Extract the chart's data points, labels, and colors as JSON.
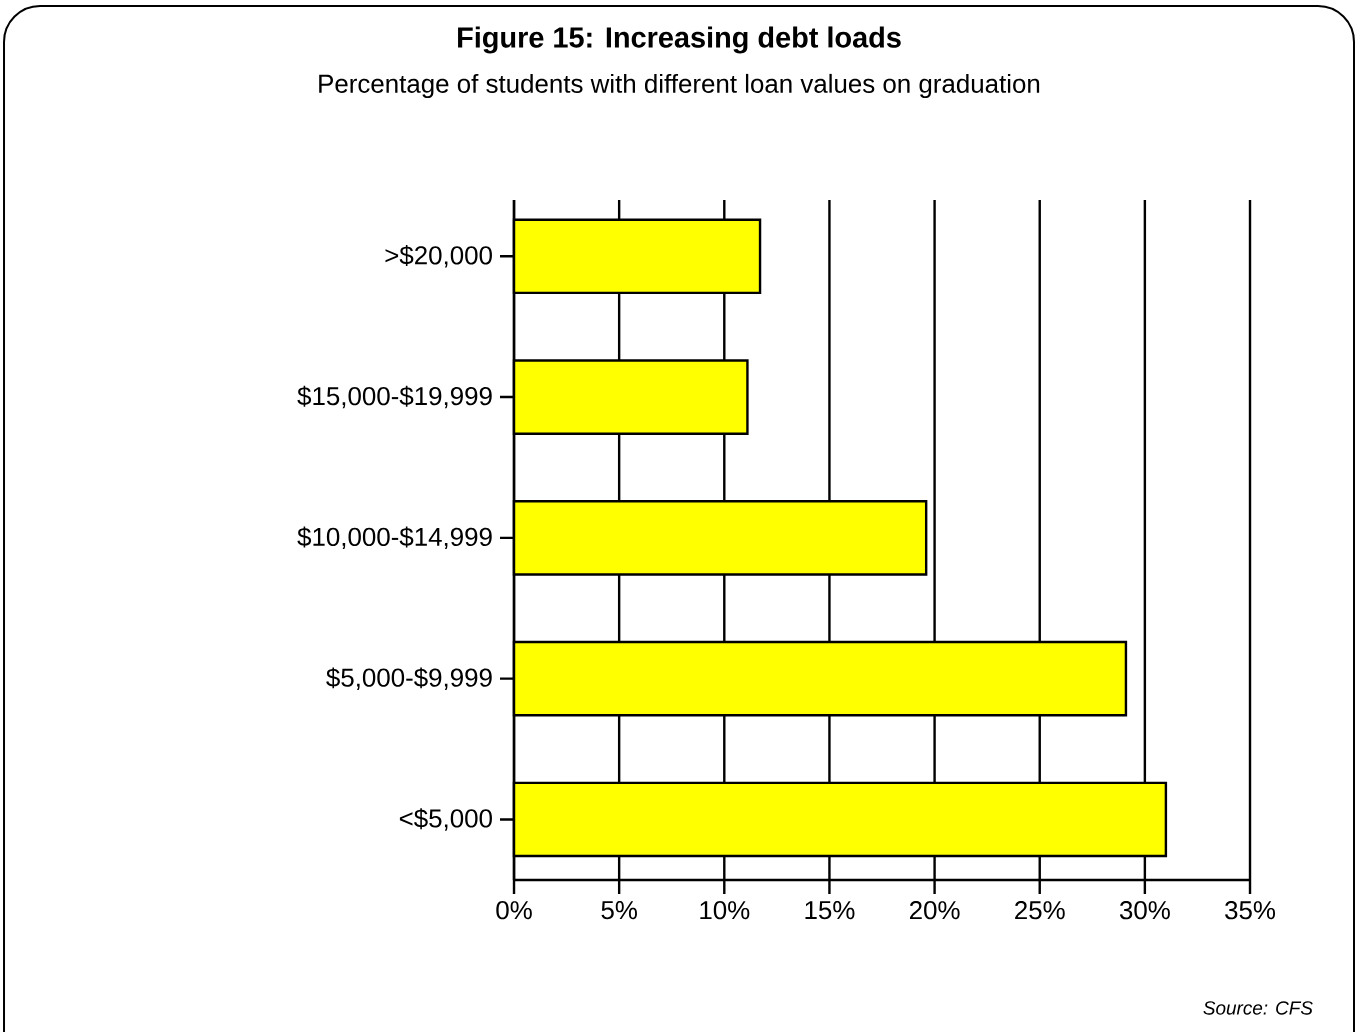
{
  "chart_data": {
    "type": "bar",
    "orientation": "horizontal",
    "title": "Figure 15: Increasing debt loads",
    "subtitle": "Percentage of students with different loan values on graduation",
    "categories": [
      ">$20,000",
      "$15,000-$19,999",
      "$10,000-$14,999",
      "$5,000-$9,999",
      "<$5,000"
    ],
    "values": [
      11.7,
      11.1,
      19.6,
      29.1,
      31.0
    ],
    "color": "#ffff00",
    "xlim": [
      0,
      35
    ],
    "xticks": [
      {
        "value": 0,
        "label": "0%"
      },
      {
        "value": 5,
        "label": "5%"
      },
      {
        "value": 10,
        "label": "10%"
      },
      {
        "value": 15,
        "label": "15%"
      },
      {
        "value": 20,
        "label": "20%"
      },
      {
        "value": 25,
        "label": "25%"
      },
      {
        "value": 30,
        "label": "30%"
      },
      {
        "value": 35,
        "label": "35%"
      }
    ],
    "grid": "x",
    "annotations": [
      "Source: CFS"
    ]
  }
}
